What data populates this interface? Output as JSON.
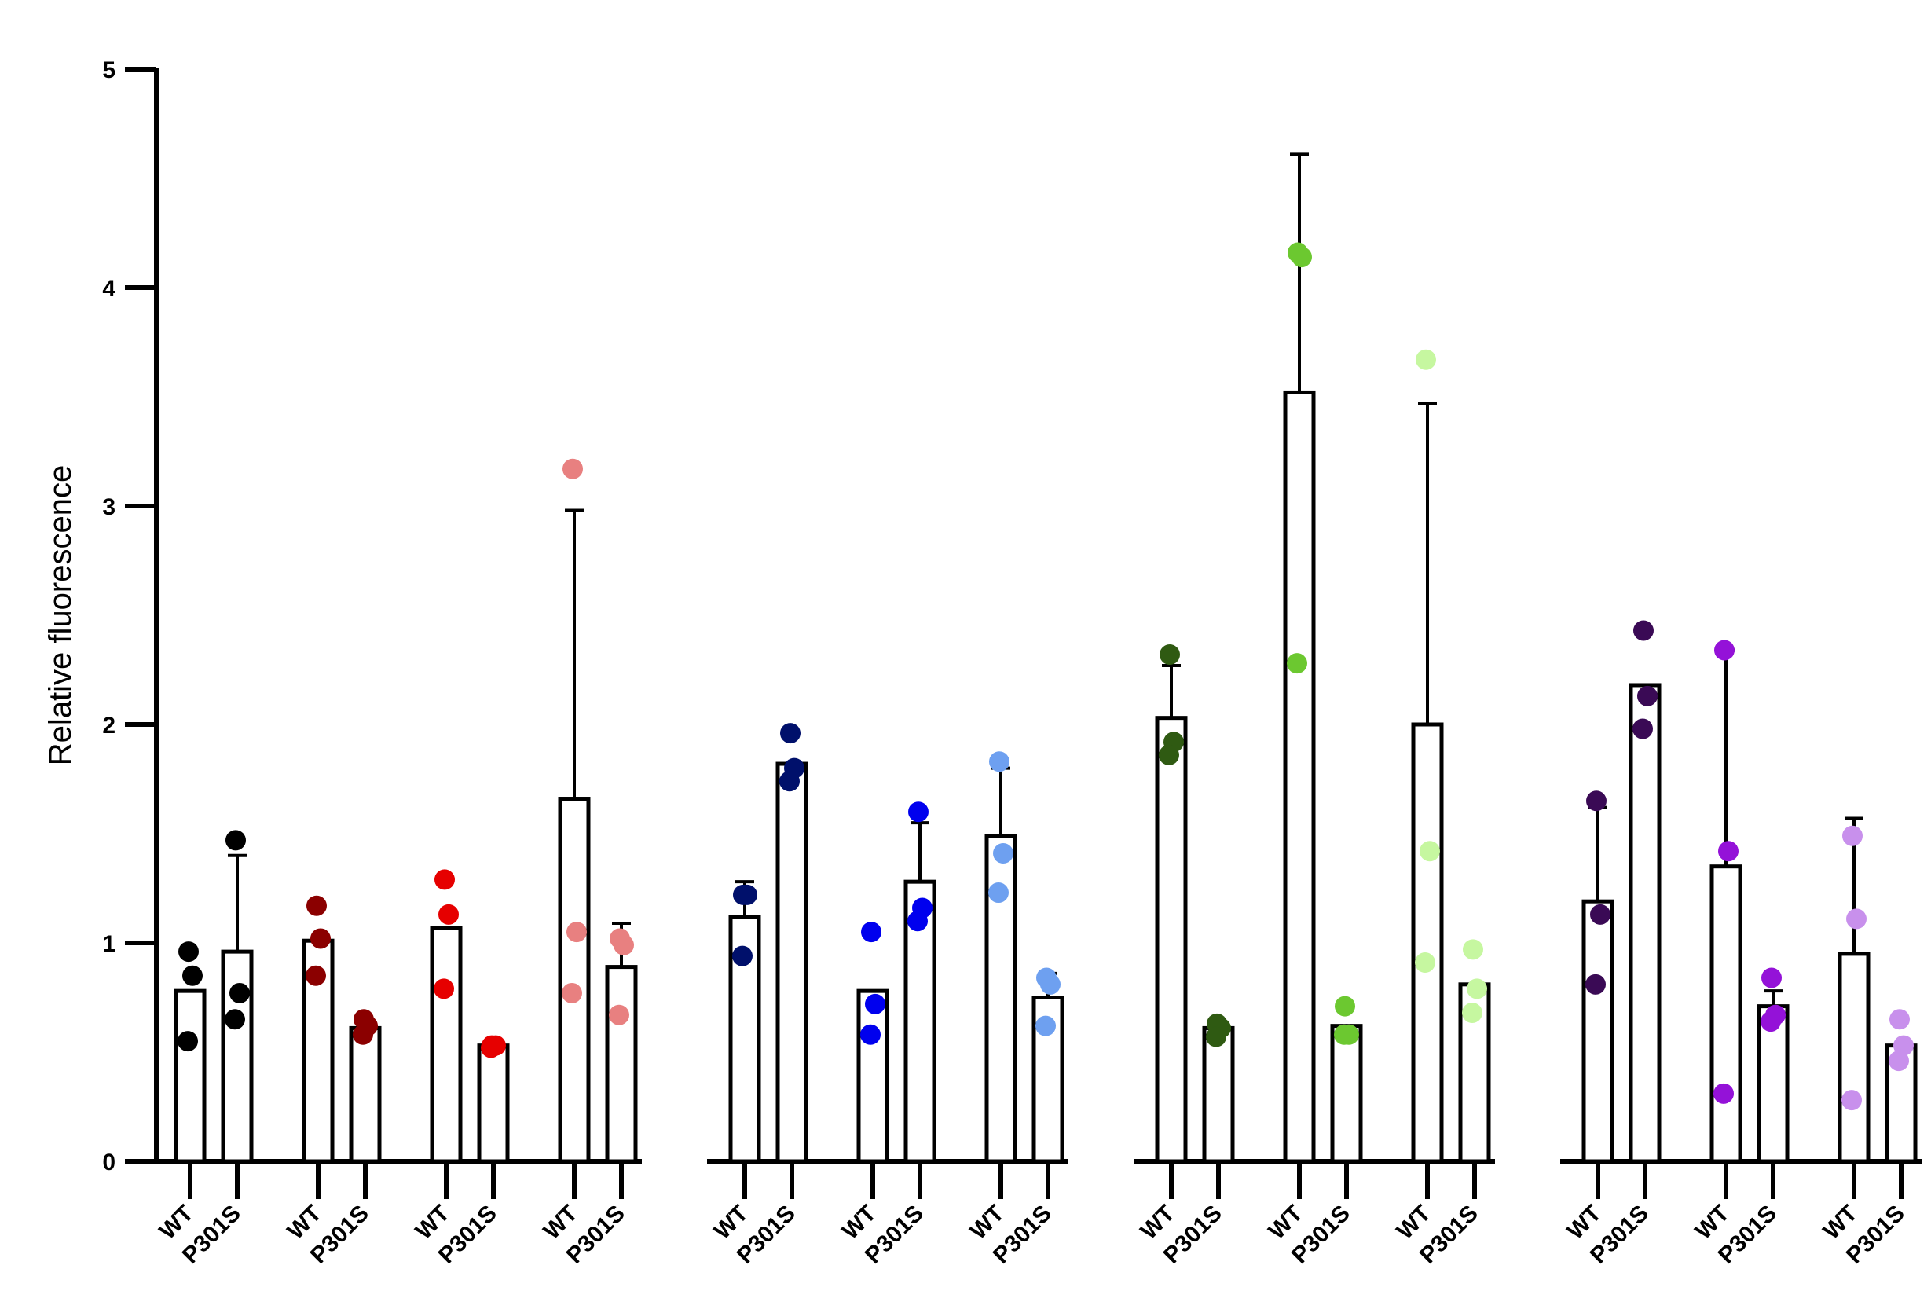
{
  "chart_data": {
    "type": "bar",
    "ylabel": "Relative fluorescence",
    "xlabel": "",
    "ylim": [
      0,
      5
    ],
    "yticks": [
      0,
      1,
      2,
      3,
      4,
      5
    ],
    "ytick_labels": [
      "0",
      "1",
      "2",
      "3",
      "4",
      "5"
    ],
    "error_bars": true,
    "panels": [
      {
        "groups": [
          {
            "color": "#000000",
            "bars": [
              {
                "label": "WT",
                "value": 0.78,
                "err": [
                  0.78,
                  0.78
                ],
                "points": [
                  0.96,
                  0.85,
                  0.55
                ]
              },
              {
                "label": "P301S",
                "value": 0.96,
                "err": [
                  0.52,
                  1.4
                ],
                "points": [
                  1.47,
                  0.77,
                  0.65
                ]
              }
            ]
          },
          {
            "color": "#8b0000",
            "bars": [
              {
                "label": "WT",
                "value": 1.01,
                "err": [
                  1.01,
                  1.01
                ],
                "points": [
                  1.17,
                  1.02,
                  0.85
                ]
              },
              {
                "label": "P301S",
                "value": 0.61,
                "err": [
                  0.61,
                  0.61
                ],
                "points": [
                  0.65,
                  0.62,
                  0.58
                ]
              }
            ]
          },
          {
            "color": "#e60000",
            "bars": [
              {
                "label": "WT",
                "value": 1.07,
                "err": [
                  1.07,
                  1.07
                ],
                "points": [
                  1.29,
                  1.13,
                  0.79
                ]
              },
              {
                "label": "P301S",
                "value": 0.53,
                "err": [
                  0.53,
                  0.53
                ],
                "points": [
                  0.53,
                  0.53,
                  0.52
                ]
              }
            ]
          },
          {
            "color": "#e88080",
            "bars": [
              {
                "label": "WT",
                "value": 1.66,
                "err": [
                  0.34,
                  2.98
                ],
                "points": [
                  3.17,
                  1.05,
                  0.77
                ]
              },
              {
                "label": "P301S",
                "value": 0.89,
                "err": [
                  0.89,
                  1.09
                ],
                "points": [
                  1.02,
                  0.99,
                  0.67
                ]
              }
            ]
          }
        ]
      },
      {
        "groups": [
          {
            "color": "#00106b",
            "bars": [
              {
                "label": "WT",
                "value": 1.12,
                "err": [
                  1.12,
                  1.28
                ],
                "points": [
                  1.22,
                  1.22,
                  0.94
                ]
              },
              {
                "label": "P301S",
                "value": 1.82,
                "err": [
                  1.82,
                  1.82
                ],
                "points": [
                  1.96,
                  1.8,
                  1.74
                ]
              }
            ]
          },
          {
            "color": "#0000ee",
            "bars": [
              {
                "label": "WT",
                "value": 0.78,
                "err": [
                  0.78,
                  0.78
                ],
                "points": [
                  1.05,
                  0.72,
                  0.58
                ]
              },
              {
                "label": "P301S",
                "value": 1.28,
                "err": [
                  1.01,
                  1.55
                ],
                "points": [
                  1.6,
                  1.16,
                  1.1
                ]
              }
            ]
          },
          {
            "color": "#6ea0f0",
            "bars": [
              {
                "label": "WT",
                "value": 1.49,
                "err": [
                  1.17,
                  1.8
                ],
                "points": [
                  1.83,
                  1.41,
                  1.23
                ]
              },
              {
                "label": "P301S",
                "value": 0.75,
                "err": [
                  0.75,
                  0.86
                ],
                "points": [
                  0.84,
                  0.81,
                  0.62
                ]
              }
            ]
          }
        ]
      },
      {
        "groups": [
          {
            "color": "#2f5a12",
            "bars": [
              {
                "label": "WT",
                "value": 2.03,
                "err": [
                  1.79,
                  2.27
                ],
                "points": [
                  2.32,
                  1.92,
                  1.86
                ]
              },
              {
                "label": "P301S",
                "value": 0.61,
                "err": [
                  0.61,
                  0.61
                ],
                "points": [
                  0.63,
                  0.61,
                  0.57
                ]
              }
            ]
          },
          {
            "color": "#6cc830",
            "bars": [
              {
                "label": "WT",
                "value": 3.52,
                "err": [
                  2.44,
                  4.61
                ],
                "points": [
                  4.16,
                  4.14,
                  2.28
                ]
              },
              {
                "label": "P301S",
                "value": 0.62,
                "err": [
                  0.62,
                  0.62
                ],
                "points": [
                  0.71,
                  0.58,
                  0.58
                ]
              }
            ]
          },
          {
            "color": "#c6f7a0",
            "bars": [
              {
                "label": "WT",
                "value": 2.0,
                "err": [
                  0.53,
                  3.47
                ],
                "points": [
                  3.67,
                  1.42,
                  0.91
                ]
              },
              {
                "label": "P301S",
                "value": 0.81,
                "err": [
                  0.81,
                  0.81
                ],
                "points": [
                  0.97,
                  0.79,
                  0.68
                ]
              }
            ]
          }
        ]
      },
      {
        "groups": [
          {
            "color": "#3a0a55",
            "bars": [
              {
                "label": "WT",
                "value": 1.19,
                "err": [
                  1.19,
                  1.62
                ],
                "points": [
                  1.65,
                  1.13,
                  0.81
                ]
              },
              {
                "label": "P301S",
                "value": 2.18,
                "err": [
                  2.18,
                  2.18
                ],
                "points": [
                  2.43,
                  2.13,
                  1.98
                ]
              }
            ]
          },
          {
            "color": "#9412d8",
            "bars": [
              {
                "label": "WT",
                "value": 1.35,
                "err": [
                  1.35,
                  2.34
                ],
                "points": [
                  2.34,
                  1.42,
                  0.31
                ]
              },
              {
                "label": "P301S",
                "value": 0.71,
                "err": [
                  0.71,
                  0.78
                ],
                "points": [
                  0.84,
                  0.67,
                  0.64
                ]
              }
            ]
          },
          {
            "color": "#c890ec",
            "bars": [
              {
                "label": "WT",
                "value": 0.95,
                "err": [
                  0.34,
                  1.57
                ],
                "points": [
                  1.49,
                  1.11,
                  0.28
                ]
              },
              {
                "label": "P301S",
                "value": 0.53,
                "err": [
                  0.53,
                  0.53
                ],
                "points": [
                  0.65,
                  0.53,
                  0.46
                ]
              }
            ]
          }
        ]
      }
    ]
  }
}
